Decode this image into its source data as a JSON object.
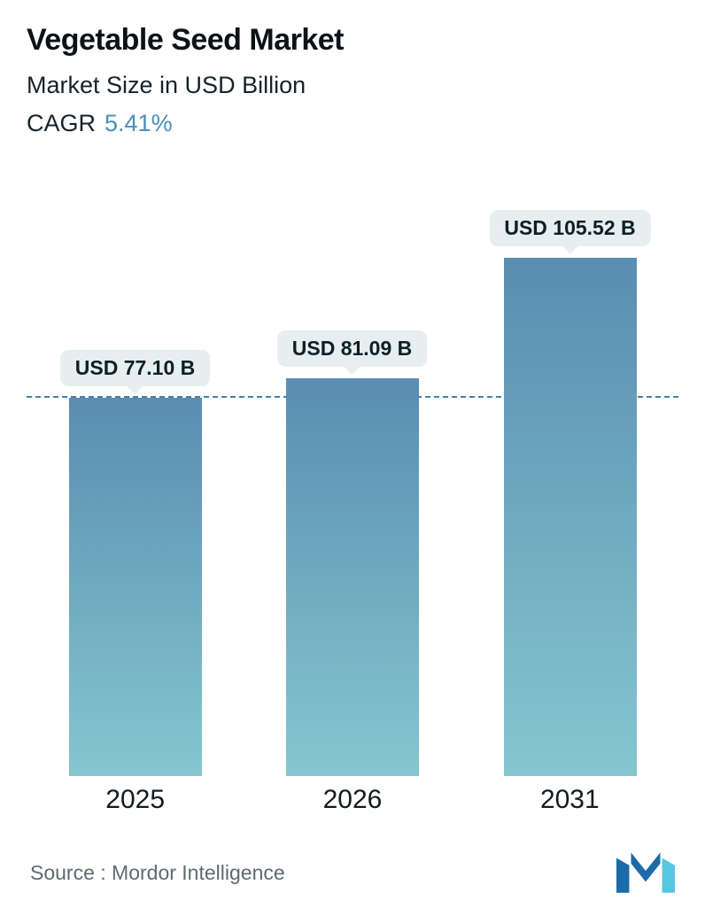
{
  "header": {
    "title": "Vegetable Seed Market",
    "subtitle": "Market Size in USD Billion",
    "cagr_label": "CAGR",
    "cagr_value": "5.41%"
  },
  "chart_data": {
    "type": "bar",
    "title": "Vegetable Seed Market",
    "subtitle": "Market Size in USD Billion",
    "categories": [
      "2025",
      "2026",
      "2031"
    ],
    "values": [
      77.1,
      81.09,
      105.52
    ],
    "bar_labels": [
      "USD 77.10 B",
      "USD 81.09 B",
      "USD 105.52 B"
    ],
    "ylim": [
      0,
      118
    ],
    "grid": false,
    "legend": "none",
    "reference_line_value": 77.1,
    "bar_gradient_top": "#5a8db1",
    "bar_gradient_bottom": "#84c7cf"
  },
  "footer": {
    "source": "Source :  Mordor Intelligence",
    "logo_icon": "mordor-intelligence-logo"
  },
  "colors": {
    "cagr_accent": "#4a90b8",
    "reference_line": "#4a7fa5",
    "label_pill_bg": "#e7eef0",
    "text_dark": "#0c1216",
    "source_text": "#5d6b70"
  }
}
